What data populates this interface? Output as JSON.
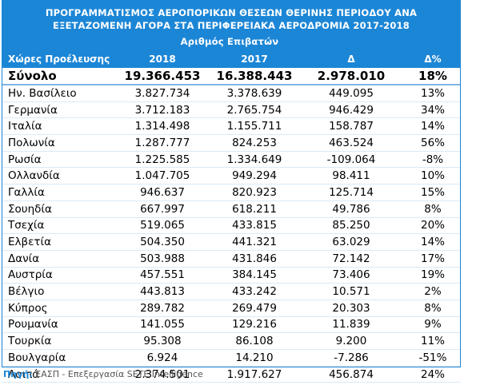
{
  "header": {
    "title": [
      "ΠΡΟΓΡΑΜΜΑΤΙΣΜΟΣ ΑΕΡΟΠΟΡΙΚΩΝ ΘΕΣΕΩΝ ΘΕΡΙΝΗΣ ΠΕΡΙΟΔΟΥ ΑΝΑ",
      "ΕΞΕΤΑΖΟΜΕΝΗ ΑΓΟΡΑ ΣΤΑ ΠΕΡΙΦΕΡΕΙΑΚΑ ΑΕΡΟΔΡΟΜΙΑ 2017-2018"
    ],
    "subtitle": "Αριθμός Επιβατών"
  },
  "table": {
    "columns": [
      "Χώρες Προέλευσης",
      "2018",
      "2017",
      "Δ",
      "Δ%"
    ],
    "total": [
      "Σύνολο",
      "19.366.453",
      "16.388.443",
      "2.978.010",
      "18%"
    ],
    "rows": [
      [
        "Ην. Βασίλειο",
        "3.827.734",
        "3.378.639",
        "449.095",
        "13%"
      ],
      [
        "Γερμανία",
        "3.712.183",
        "2.765.754",
        "946.429",
        "34%"
      ],
      [
        "Ιταλία",
        "1.314.498",
        "1.155.711",
        "158.787",
        "14%"
      ],
      [
        "Πολωνία",
        "1.287.777",
        "824.253",
        "463.524",
        "56%"
      ],
      [
        "Ρωσία",
        "1.225.585",
        "1.334.649",
        "-109.064",
        "-8%"
      ],
      [
        "Ολλανδία",
        "1.047.705",
        "949.294",
        "98.411",
        "10%"
      ],
      [
        "Γαλλία",
        "946.637",
        "820.923",
        "125.714",
        "15%"
      ],
      [
        "Σουηδία",
        "667.997",
        "618.211",
        "49.786",
        "8%"
      ],
      [
        "Τσεχία",
        "519.065",
        "433.815",
        "85.250",
        "20%"
      ],
      [
        "Ελβετία",
        "504.350",
        "441.321",
        "63.029",
        "14%"
      ],
      [
        "Δανία",
        "503.988",
        "431.846",
        "72.142",
        "17%"
      ],
      [
        "Αυστρία",
        "457.551",
        "384.145",
        "73.406",
        "19%"
      ],
      [
        "Βέλγιο",
        "443.813",
        "433.242",
        "10.571",
        "2%"
      ],
      [
        "Κύπρος",
        "289.782",
        "269.479",
        "20.303",
        "8%"
      ],
      [
        "Ρουμανία",
        "141.055",
        "129.216",
        "11.839",
        "9%"
      ],
      [
        "Τουρκία",
        "95.308",
        "86.108",
        "9.200",
        "11%"
      ],
      [
        "Βουλγαρία",
        "6.924",
        "14.210",
        "-7.286",
        "-51%"
      ],
      [
        "Λοιπά",
        "2.374.501",
        "1.917.627",
        "456.874",
        "24%"
      ]
    ]
  },
  "source": {
    "label": "Πηγή:",
    "text": "ΕΑΣΠ - Επεξεργασία SETE Intelligence"
  }
}
